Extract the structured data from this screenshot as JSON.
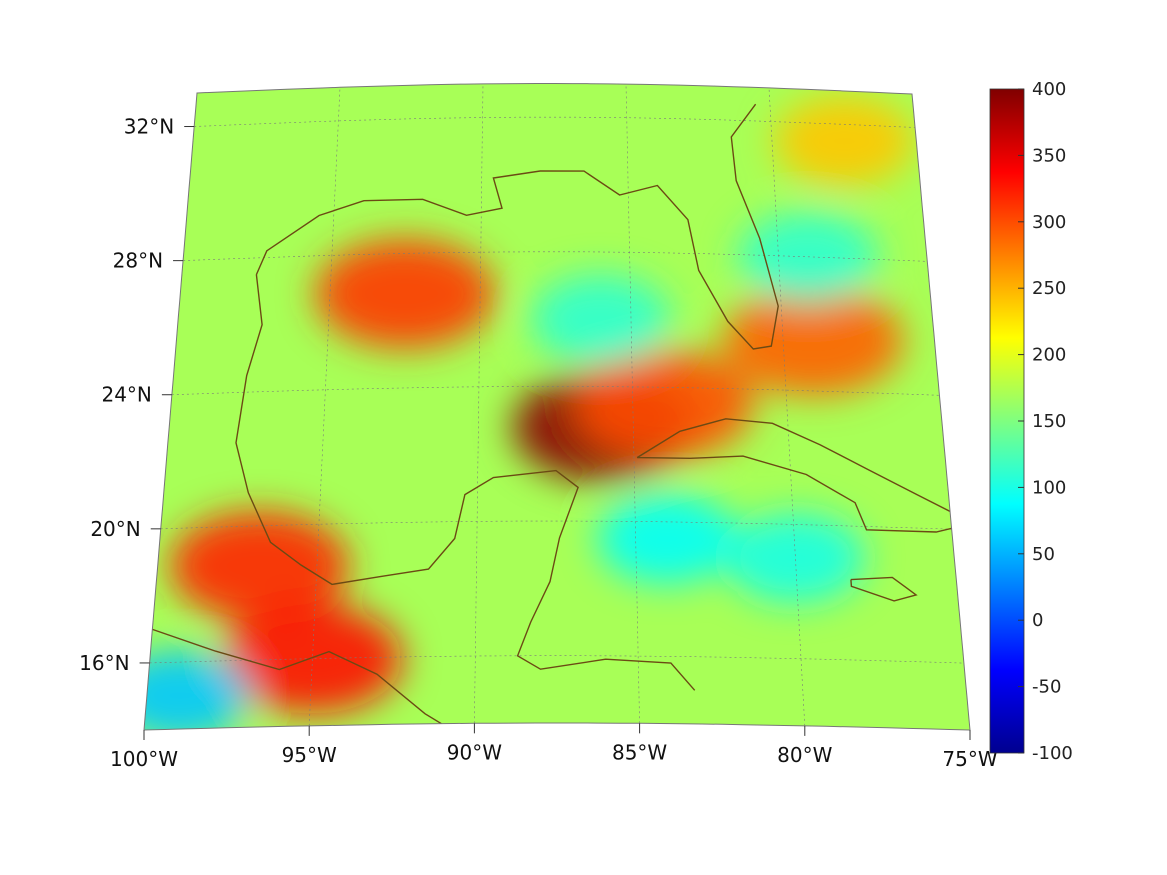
{
  "map": {
    "projection": "conic",
    "lon_range": [
      -100,
      -75
    ],
    "lat_range": [
      14,
      33
    ],
    "grid": true,
    "lon_ticks": [
      {
        "value": -100,
        "label": "100°W"
      },
      {
        "value": -95,
        "label": "95°W"
      },
      {
        "value": -90,
        "label": "90°W"
      },
      {
        "value": -85,
        "label": "85°W"
      },
      {
        "value": -80,
        "label": "80°W"
      },
      {
        "value": -75,
        "label": "75°W"
      }
    ],
    "lat_ticks": [
      {
        "value": 16,
        "label": "16°N"
      },
      {
        "value": 20,
        "label": "20°N"
      },
      {
        "value": 24,
        "label": "24°N"
      },
      {
        "value": 28,
        "label": "28°N"
      },
      {
        "value": 32,
        "label": "32°N"
      }
    ],
    "field_background_value": 170,
    "coastline_color": "#6b4a14",
    "blobs": [
      {
        "name": "western-gulf-ridge",
        "lon": -92.5,
        "lat": 26.8,
        "value": 310
      },
      {
        "name": "central-gulf-high",
        "lon": -86.0,
        "lat": 22.8,
        "value": 395
      },
      {
        "name": "yucatan-channel-high",
        "lon": -84.0,
        "lat": 23.5,
        "value": 300
      },
      {
        "name": "bay-of-campeche-high",
        "lon": -96.8,
        "lat": 18.8,
        "value": 320
      },
      {
        "name": "isthmus-high",
        "lon": -95.0,
        "lat": 16.0,
        "value": 330
      },
      {
        "name": "great-bahama-high",
        "lon": -79.0,
        "lat": 25.5,
        "value": 290
      },
      {
        "name": "northeast-atlantic-warm",
        "lon": -77.5,
        "lat": 31.5,
        "value": 240
      },
      {
        "name": "cuba-low",
        "lon": -84.0,
        "lat": 19.5,
        "value": 90
      },
      {
        "name": "caribbean-low",
        "lon": -80.0,
        "lat": 19.0,
        "value": 100
      },
      {
        "name": "pacific-low",
        "lon": -99.0,
        "lat": 15.0,
        "value": 60
      },
      {
        "name": "gulf-stream-low",
        "lon": -79.0,
        "lat": 28.0,
        "value": 110
      },
      {
        "name": "eastern-gulf-low",
        "lon": -86.0,
        "lat": 26.0,
        "value": 110
      }
    ]
  },
  "colorbar": {
    "min": -100,
    "max": 400,
    "colormap": "jet",
    "ticks": [
      {
        "value": 400,
        "label": "400"
      },
      {
        "value": 350,
        "label": "350"
      },
      {
        "value": 300,
        "label": "300"
      },
      {
        "value": 250,
        "label": "250"
      },
      {
        "value": 200,
        "label": "200"
      },
      {
        "value": 150,
        "label": "150"
      },
      {
        "value": 100,
        "label": "100"
      },
      {
        "value": 50,
        "label": "50"
      },
      {
        "value": 0,
        "label": "0"
      },
      {
        "value": -50,
        "label": "-50"
      },
      {
        "value": -100,
        "label": "-100"
      }
    ]
  }
}
